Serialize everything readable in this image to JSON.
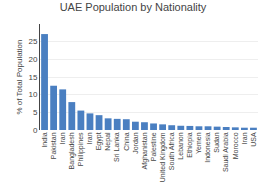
{
  "chart_data": {
    "type": "bar",
    "title": "UAE Population by Nationality",
    "ylabel": "% of Total Population",
    "categories": [
      "India",
      "Pakistan",
      "Iran",
      "Bangladesh",
      "Philippines",
      "Iran",
      "Egypt",
      "Nepal",
      "Sri Lanka",
      "China",
      "Jordan",
      "Afghanistan",
      "Palestine",
      "United Kingdom",
      "South Africa",
      "Lebanon",
      "Ethiopia",
      "Yemen",
      "Indonesia",
      "Sudan",
      "Saudi Arabia",
      "Morocco",
      "Iran",
      "USA"
    ],
    "values": [
      27.15,
      12.53,
      11.5,
      7.9,
      5.5,
      4.7,
      4.2,
      3.3,
      3.15,
      3.05,
      2.35,
      2.2,
      1.85,
      1.6,
      1.35,
      1.2,
      1.15,
      1.05,
      1.05,
      0.95,
      0.85,
      0.75,
      0.65,
      0.65
    ],
    "color": "#4a7fc1",
    "ylim": [
      0,
      30
    ],
    "yticks": [
      0,
      5,
      10,
      15,
      20,
      25
    ],
    "grid": true
  }
}
